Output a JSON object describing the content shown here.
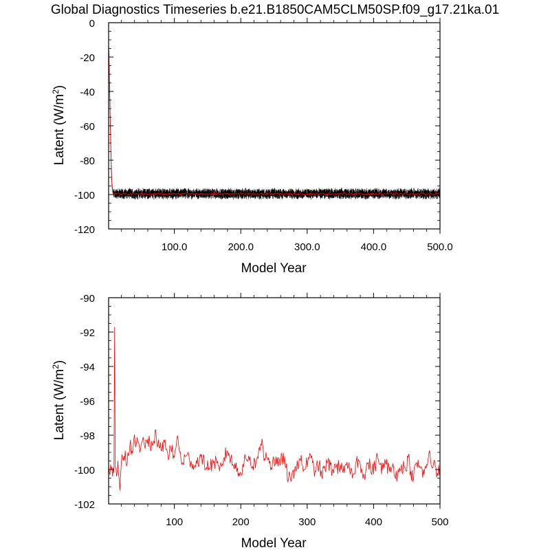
{
  "title": "Global Diagnostics Timeseries b.e21.B1850CAM5CLM50SP.f09_g17.21ka.01",
  "colors": {
    "monthly_line": "#000000",
    "annual_line": "#ff0000",
    "axes": "#000000"
  },
  "chart_data": [
    {
      "type": "line",
      "title": "",
      "xlabel": "Model Year",
      "ylabel": "Latent (W/m",
      "ylabel_sup": "2",
      "ylabel_close": ")",
      "xlim": [
        1,
        500
      ],
      "ylim": [
        -120,
        0
      ],
      "xticks": [
        100,
        200,
        300,
        400,
        500
      ],
      "xtick_labels": [
        "100.0",
        "200.0",
        "300.0",
        "400.0",
        "500.0"
      ],
      "yticks": [
        0,
        -20,
        -40,
        -60,
        -80,
        -100,
        -120
      ],
      "ytick_labels": [
        "0",
        "-20",
        "-40",
        "-60",
        "-80",
        "-100",
        "-120"
      ],
      "series": [
        {
          "role": "monthly",
          "color": "#000000",
          "spinup_years": [
            1,
            2,
            3,
            4,
            5,
            6,
            7,
            8
          ],
          "spinup_values": [
            -10,
            -25,
            -45,
            -65,
            -82,
            -93,
            -97,
            -99
          ],
          "mean": -99.5,
          "noise_amplitude": 2.5
        },
        {
          "role": "annual",
          "color": "#ff0000",
          "spinup_years": [
            1,
            2,
            3,
            4,
            5,
            6,
            7,
            8
          ],
          "spinup_values": [
            -14,
            -30,
            -50,
            -70,
            -86,
            -95,
            -98.5,
            -99.8
          ],
          "mean": -99.6
        }
      ]
    },
    {
      "type": "line",
      "title": "",
      "xlabel": "Model Year",
      "ylabel": "Latent (W/m",
      "ylabel_sup": "2",
      "ylabel_close": ")",
      "xlim": [
        1,
        500
      ],
      "ylim": [
        -102,
        -90
      ],
      "xticks": [
        100,
        200,
        300,
        400,
        500
      ],
      "xtick_labels": [
        "100",
        "200",
        "300",
        "400",
        "500"
      ],
      "yticks": [
        -90,
        -92,
        -94,
        -96,
        -98,
        -100,
        -102
      ],
      "ytick_labels": [
        "-90",
        "-92",
        "-94",
        "-96",
        "-98",
        "-100",
        "-102"
      ],
      "series": [
        {
          "role": "annual",
          "color": "#ff0000",
          "keypoints": [
            [
              1,
              -99.8
            ],
            [
              3,
              -100.3
            ],
            [
              5,
              -100.0
            ],
            [
              7,
              -100.4
            ],
            [
              9,
              -100.2
            ],
            [
              10,
              -91.7
            ],
            [
              11,
              -99.9
            ],
            [
              13,
              -100.4
            ],
            [
              15,
              -99.5
            ],
            [
              17,
              -100.5
            ],
            [
              18,
              -101.2
            ],
            [
              20,
              -99.7
            ],
            [
              22,
              -99.3
            ],
            [
              24,
              -99.2
            ],
            [
              26,
              -98.9
            ],
            [
              28,
              -99.8
            ],
            [
              30,
              -99.0
            ],
            [
              33,
              -98.6
            ],
            [
              36,
              -98.9
            ],
            [
              39,
              -98.2
            ],
            [
              42,
              -98.7
            ],
            [
              45,
              -98.4
            ],
            [
              48,
              -99.0
            ],
            [
              52,
              -98.3
            ],
            [
              55,
              -98.6
            ],
            [
              60,
              -98.2
            ],
            [
              65,
              -98.9
            ],
            [
              68,
              -98.5
            ],
            [
              72,
              -97.7
            ],
            [
              75,
              -98.6
            ],
            [
              80,
              -98.9
            ],
            [
              85,
              -98.4
            ],
            [
              90,
              -99.1
            ],
            [
              95,
              -98.8
            ],
            [
              100,
              -99.3
            ],
            [
              104,
              -98.1
            ],
            [
              108,
              -99.0
            ],
            [
              112,
              -99.6
            ],
            [
              118,
              -99.2
            ],
            [
              125,
              -99.5
            ],
            [
              130,
              -99.8
            ],
            [
              138,
              -99.3
            ],
            [
              145,
              -99.6
            ],
            [
              152,
              -99.9
            ],
            [
              160,
              -99.5
            ],
            [
              168,
              -100.1
            ],
            [
              175,
              -99.3
            ],
            [
              180,
              -98.9
            ],
            [
              188,
              -99.7
            ],
            [
              195,
              -99.9
            ],
            [
              200,
              -100.2
            ],
            [
              205,
              -99.6
            ],
            [
              212,
              -99.2
            ],
            [
              218,
              -99.8
            ],
            [
              224,
              -99.4
            ],
            [
              229,
              -98.9
            ],
            [
              232,
              -98.2
            ],
            [
              235,
              -99.5
            ],
            [
              238,
              -99.0
            ],
            [
              242,
              -99.3
            ],
            [
              246,
              -99.9
            ],
            [
              250,
              -99.4
            ],
            [
              256,
              -99.8
            ],
            [
              262,
              -99.2
            ],
            [
              268,
              -99.9
            ],
            [
              272,
              -100.5
            ],
            [
              276,
              -100.7
            ],
            [
              282,
              -99.8
            ],
            [
              290,
              -99.5
            ],
            [
              296,
              -100.0
            ],
            [
              302,
              -99.3
            ],
            [
              308,
              -99.6
            ],
            [
              312,
              -100.1
            ],
            [
              318,
              -99.7
            ],
            [
              322,
              -100.4
            ],
            [
              330,
              -99.6
            ],
            [
              338,
              -100.0
            ],
            [
              344,
              -99.8
            ],
            [
              348,
              -99.9
            ],
            [
              352,
              -99.6
            ],
            [
              356,
              -100.2
            ],
            [
              362,
              -99.8
            ],
            [
              368,
              -100.5
            ],
            [
              374,
              -99.5
            ],
            [
              380,
              -99.7
            ],
            [
              386,
              -100.3
            ],
            [
              392,
              -99.6
            ],
            [
              398,
              -100.1
            ],
            [
              402,
              -99.8
            ],
            [
              406,
              -99.3
            ],
            [
              410,
              -99.7
            ],
            [
              414,
              -100.0
            ],
            [
              418,
              -99.6
            ],
            [
              424,
              -100.1
            ],
            [
              430,
              -99.8
            ],
            [
              436,
              -100.4
            ],
            [
              442,
              -99.7
            ],
            [
              448,
              -100.0
            ],
            [
              452,
              -99.3
            ],
            [
              456,
              -100.1
            ],
            [
              460,
              -100.6
            ],
            [
              464,
              -99.6
            ],
            [
              470,
              -99.9
            ],
            [
              476,
              -100.3
            ],
            [
              480,
              -99.7
            ],
            [
              485,
              -99.1
            ],
            [
              488,
              -99.9
            ],
            [
              492,
              -99.5
            ],
            [
              496,
              -100.2
            ],
            [
              500,
              -99.8
            ]
          ],
          "noise_amplitude": 0.45
        }
      ]
    }
  ]
}
